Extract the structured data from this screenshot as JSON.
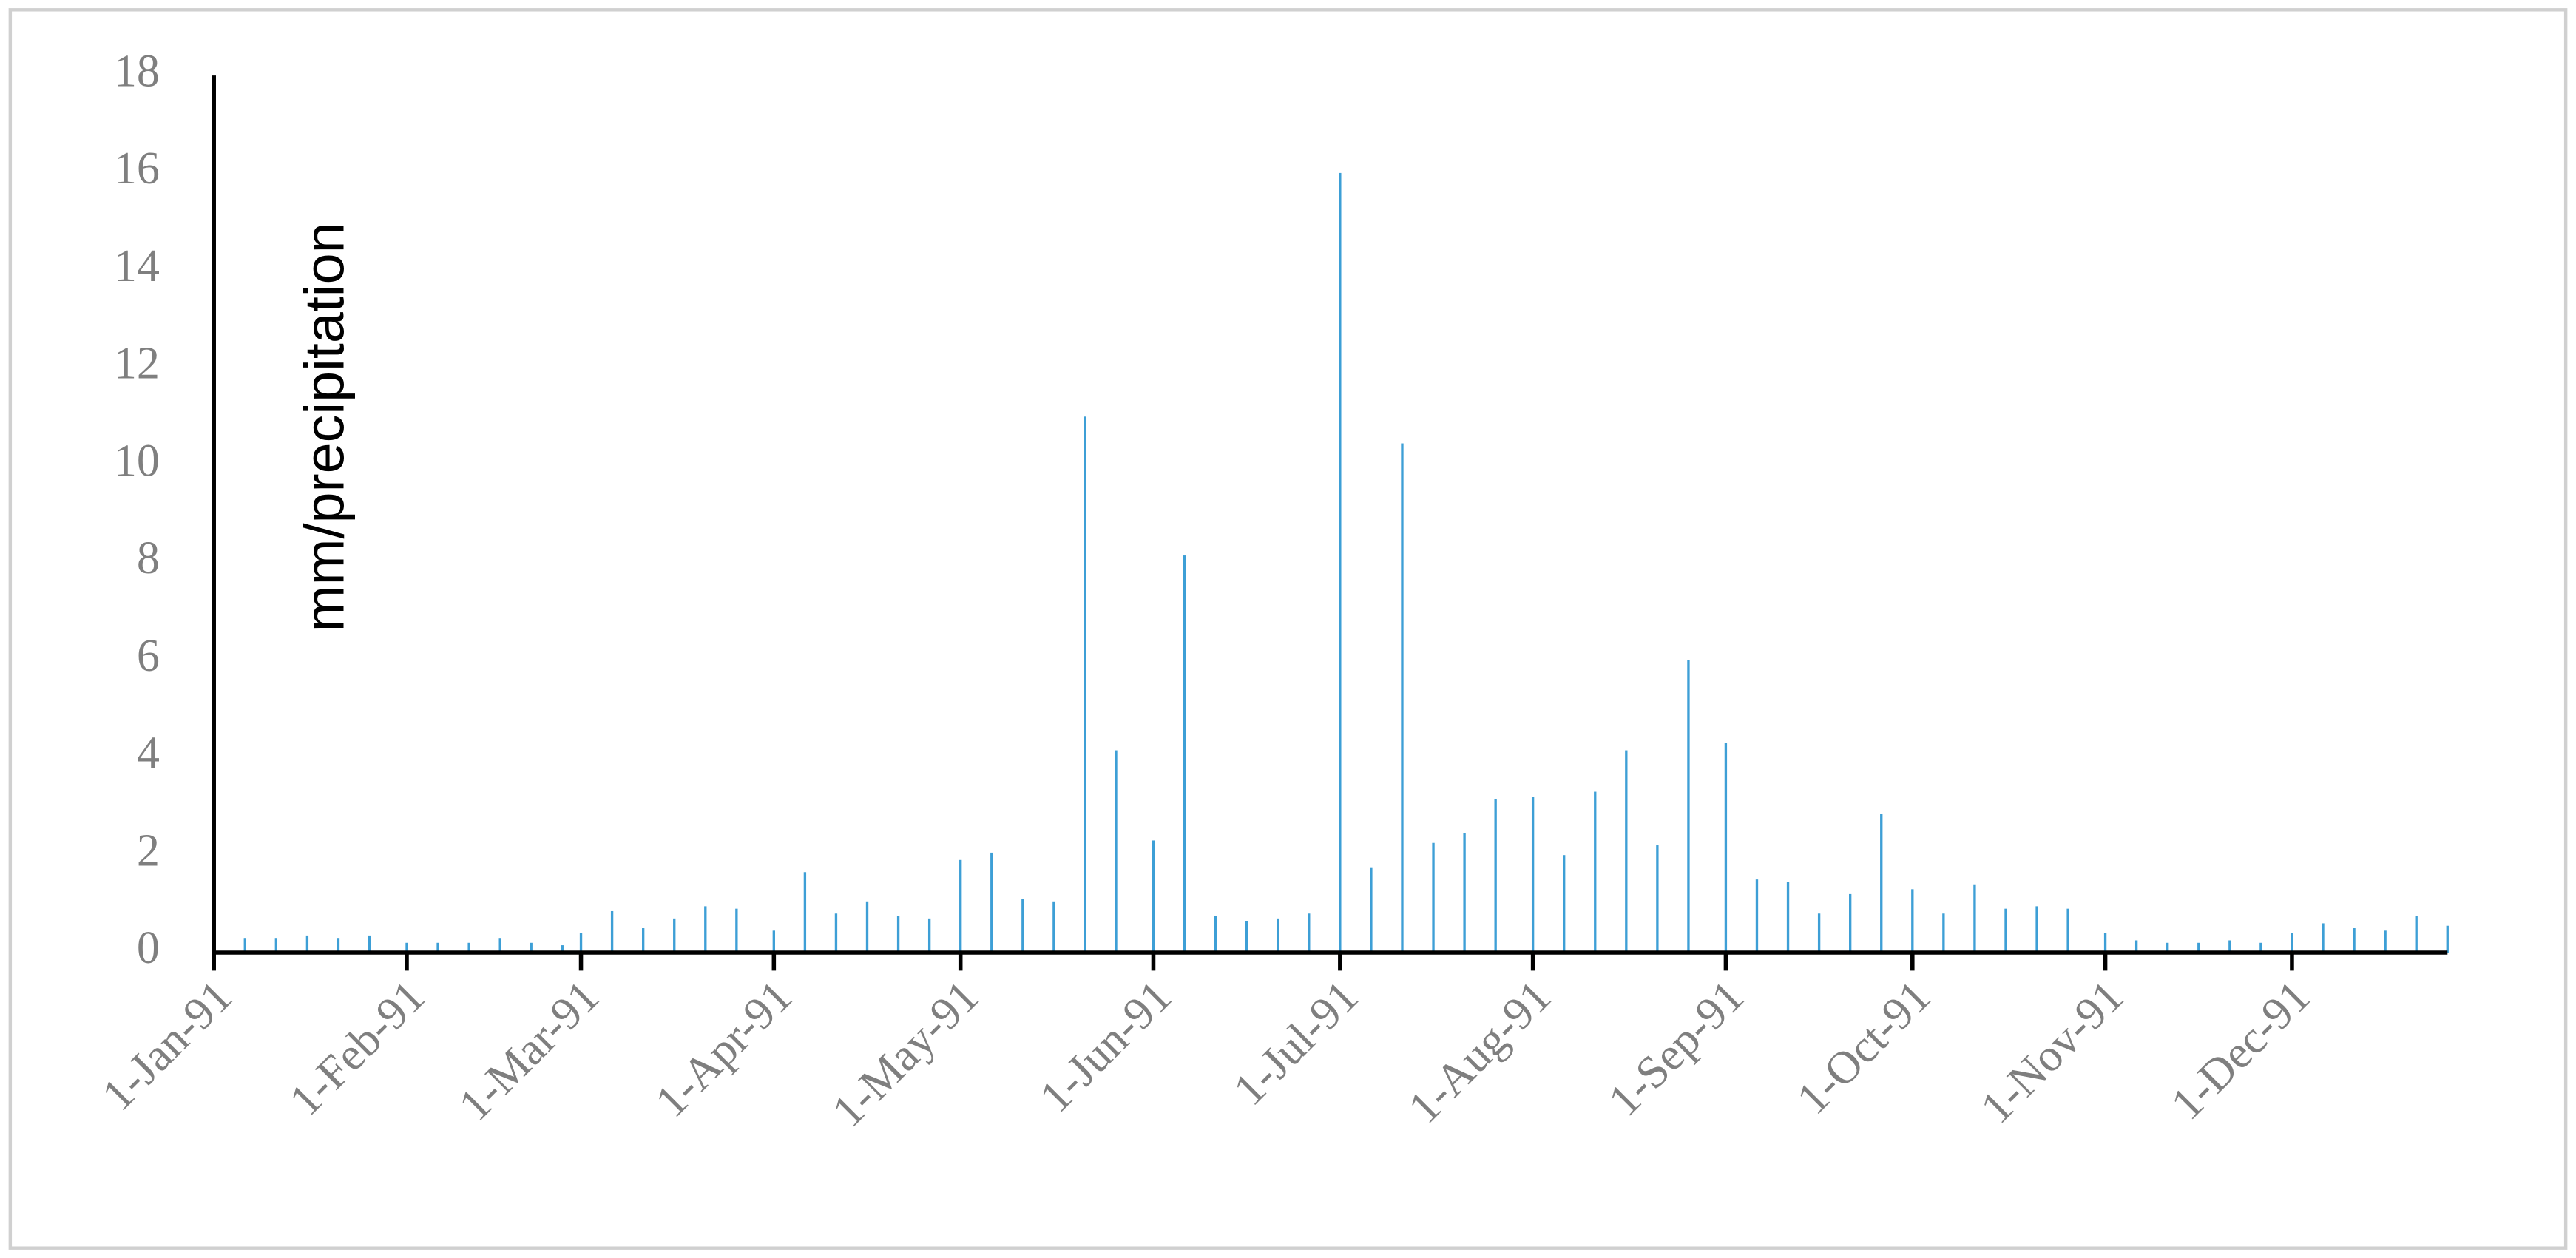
{
  "chart_data": {
    "type": "bar",
    "y_label": "mm/precipitation",
    "color": "#3d9fd6",
    "x": [
      "1991-01-01",
      "1991-01-06",
      "1991-01-11",
      "1991-01-16",
      "1991-01-21",
      "1991-01-26",
      "1991-02-01",
      "1991-02-06",
      "1991-02-11",
      "1991-02-16",
      "1991-02-21",
      "1991-02-26",
      "1991-03-01",
      "1991-03-06",
      "1991-03-11",
      "1991-03-16",
      "1991-03-21",
      "1991-03-26",
      "1991-04-01",
      "1991-04-06",
      "1991-04-11",
      "1991-04-16",
      "1991-04-21",
      "1991-04-26",
      "1991-05-01",
      "1991-05-06",
      "1991-05-11",
      "1991-05-16",
      "1991-05-21",
      "1991-05-26",
      "1991-06-01",
      "1991-06-06",
      "1991-06-11",
      "1991-06-16",
      "1991-06-21",
      "1991-06-26",
      "1991-07-01",
      "1991-07-06",
      "1991-07-11",
      "1991-07-16",
      "1991-07-21",
      "1991-07-26",
      "1991-08-01",
      "1991-08-06",
      "1991-08-11",
      "1991-08-16",
      "1991-08-21",
      "1991-08-26",
      "1991-09-01",
      "1991-09-06",
      "1991-09-11",
      "1991-09-16",
      "1991-09-21",
      "1991-09-26",
      "1991-10-01",
      "1991-10-06",
      "1991-10-11",
      "1991-10-16",
      "1991-10-21",
      "1991-10-26",
      "1991-11-01",
      "1991-11-06",
      "1991-11-11",
      "1991-11-16",
      "1991-11-21",
      "1991-11-26",
      "1991-12-01",
      "1991-12-06",
      "1991-12-11",
      "1991-12-16",
      "1991-12-21",
      "1991-12-26"
    ],
    "values": [
      0.3,
      0.3,
      0.3,
      0.35,
      0.3,
      0.35,
      0.2,
      0.2,
      0.2,
      0.3,
      0.2,
      0.15,
      0.4,
      0.85,
      0.5,
      0.7,
      0.95,
      0.9,
      0.45,
      1.65,
      0.8,
      1.05,
      0.75,
      0.7,
      1.9,
      2.05,
      1.1,
      1.05,
      11.0,
      4.15,
      2.3,
      8.15,
      0.75,
      0.65,
      0.7,
      0.8,
      16.0,
      1.75,
      10.45,
      2.25,
      2.45,
      3.15,
      3.2,
      2.0,
      3.3,
      4.15,
      2.2,
      6.0,
      4.3,
      1.5,
      1.45,
      0.8,
      1.2,
      2.85,
      1.3,
      0.8,
      1.4,
      0.9,
      0.95,
      0.9,
      0.4,
      0.25,
      0.2,
      0.2,
      0.25,
      0.2,
      0.4,
      0.6,
      0.5,
      0.45,
      0.75,
      0.55
    ],
    "xlim": [
      "1991-01-01",
      "1991-12-26"
    ],
    "xticks": [
      {
        "value": "1991-01-01",
        "label": "1-Jan-91"
      },
      {
        "value": "1991-02-01",
        "label": "1-Feb-91"
      },
      {
        "value": "1991-03-01",
        "label": "1-Mar-91"
      },
      {
        "value": "1991-04-01",
        "label": "1-Apr-91"
      },
      {
        "value": "1991-05-01",
        "label": "1-May-91"
      },
      {
        "value": "1991-06-01",
        "label": "1-Jun-91"
      },
      {
        "value": "1991-07-01",
        "label": "1-Jul-91"
      },
      {
        "value": "1991-08-01",
        "label": "1-Aug-91"
      },
      {
        "value": "1991-09-01",
        "label": "1-Sep-91"
      },
      {
        "value": "1991-10-01",
        "label": "1-Oct-91"
      },
      {
        "value": "1991-11-01",
        "label": "1-Nov-91"
      },
      {
        "value": "1991-12-01",
        "label": "1-Dec-91"
      }
    ],
    "ylim": [
      0,
      18
    ],
    "yticks": [
      0,
      2,
      4,
      6,
      8,
      10,
      12,
      14,
      16,
      18
    ],
    "grid": false
  }
}
